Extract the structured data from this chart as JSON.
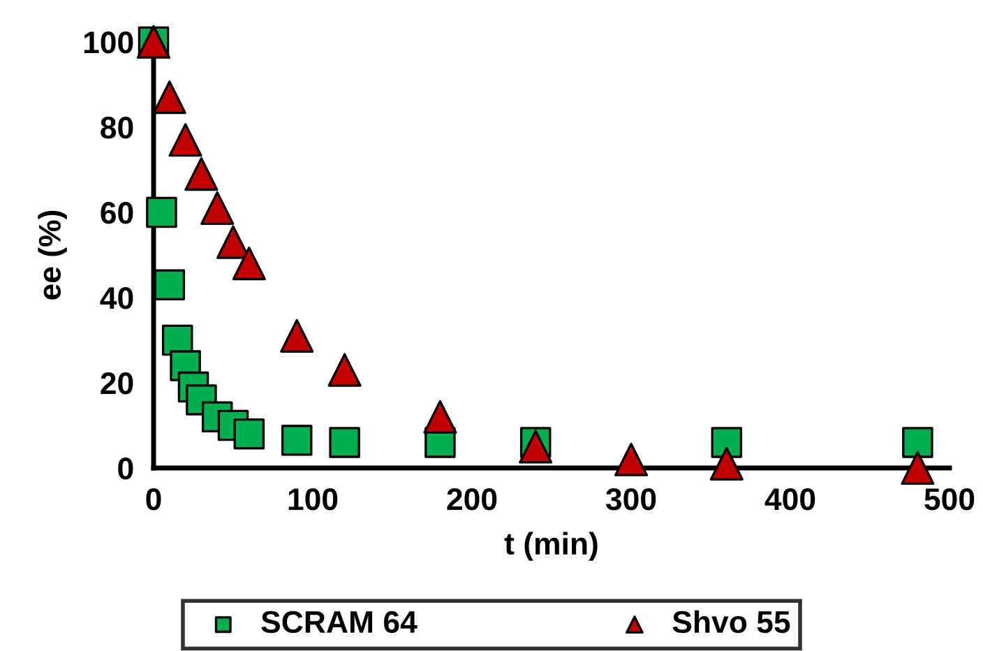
{
  "chart_data": {
    "type": "scatter",
    "xlabel": "t (min)",
    "ylabel": "ee (%)",
    "xlim": [
      0,
      500
    ],
    "xticks": [
      0,
      100,
      200,
      300,
      400,
      500
    ],
    "ylim": [
      0,
      100
    ],
    "yticks": [
      0,
      20,
      40,
      60,
      80,
      100
    ],
    "grid": false,
    "legend": "bottom",
    "series": [
      {
        "name": "SCRAM 64",
        "color": "#00b050",
        "marker": "square",
        "x": [
          0,
          5,
          10,
          15,
          20,
          25,
          30,
          40,
          50,
          60,
          90,
          120,
          180,
          240,
          360,
          480
        ],
        "values": [
          100,
          60,
          43,
          30,
          24,
          19,
          16,
          12,
          10,
          8,
          6.5,
          6,
          6,
          6,
          6,
          6
        ]
      },
      {
        "name": "Shvo 55",
        "color": "#c00000",
        "marker": "triangle",
        "x": [
          0,
          10,
          20,
          30,
          40,
          50,
          60,
          90,
          120,
          180,
          240,
          300,
          360,
          480
        ],
        "values": [
          100,
          87,
          77,
          69,
          61,
          53,
          48,
          31,
          23,
          12,
          5,
          2,
          1,
          0
        ]
      }
    ]
  }
}
